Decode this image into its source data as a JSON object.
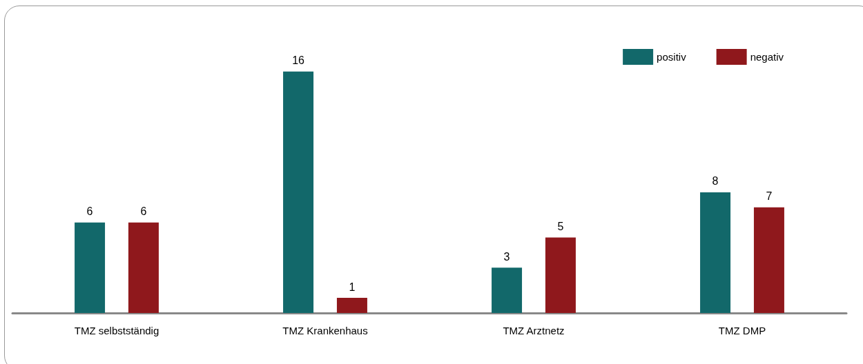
{
  "chart_data": {
    "type": "bar",
    "categories": [
      "TMZ selbstständig",
      "TMZ Krankenhaus",
      "TMZ Arztnetz",
      "TMZ DMP"
    ],
    "series": [
      {
        "name": "positiv",
        "color": "#12686a",
        "values": [
          6,
          16,
          3,
          8
        ]
      },
      {
        "name": "negativ",
        "color": "#8f181c",
        "values": [
          6,
          1,
          5,
          7
        ]
      }
    ],
    "data_labels": true,
    "legend": "top right"
  }
}
